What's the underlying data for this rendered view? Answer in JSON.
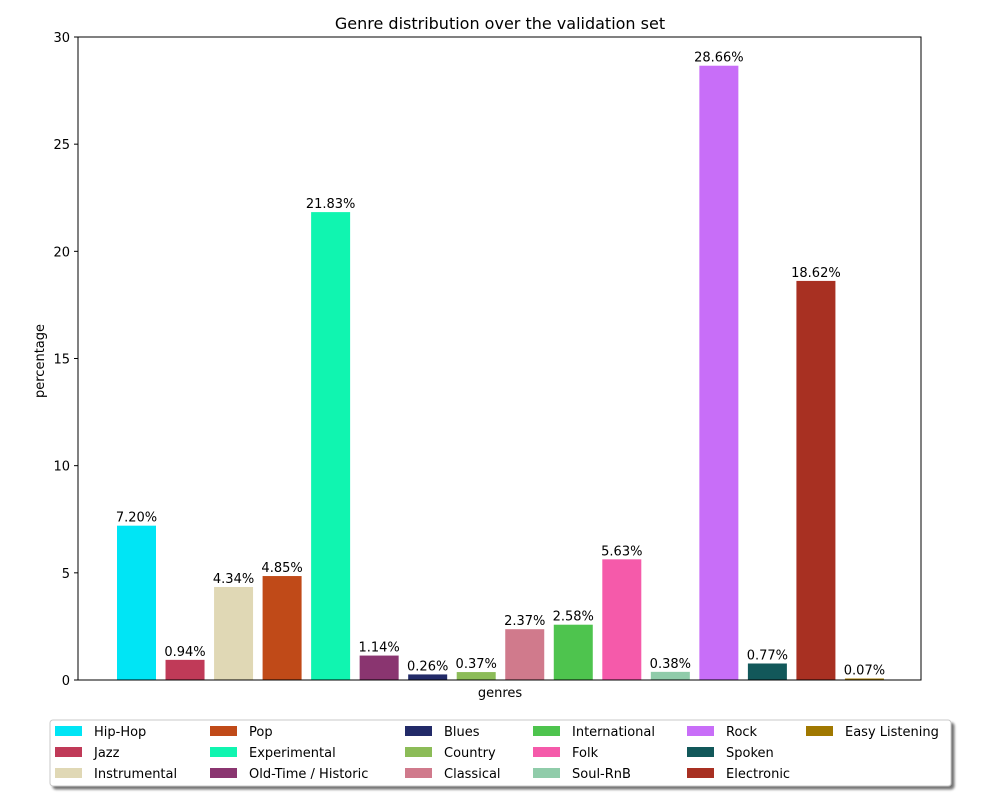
{
  "chart_data": {
    "type": "bar",
    "title": "Genre distribution over the validation set",
    "xlabel": "genres",
    "ylabel": "percentage",
    "ylim": [
      0,
      30
    ],
    "yticks": [
      "0",
      "5",
      "10",
      "15",
      "20",
      "25",
      "30"
    ],
    "legend_position": "bottom",
    "bars": [
      {
        "name": "Hip-Hop",
        "value": 7.2,
        "label": "7.20%",
        "color": "#00e5f5"
      },
      {
        "name": "Jazz",
        "value": 0.94,
        "label": "0.94%",
        "color": "#c03a58"
      },
      {
        "name": "Instrumental",
        "value": 4.34,
        "label": "4.34%",
        "color": "#e0d8b5"
      },
      {
        "name": "Pop",
        "value": 4.85,
        "label": "4.85%",
        "color": "#c04a18"
      },
      {
        "name": "Experimental",
        "value": 21.83,
        "label": "21.83%",
        "color": "#10f5b0"
      },
      {
        "name": "Old-Time / Historic",
        "value": 1.14,
        "label": "1.14%",
        "color": "#8a3570"
      },
      {
        "name": "Blues",
        "value": 0.26,
        "label": "0.26%",
        "color": "#222a68"
      },
      {
        "name": "Country",
        "value": 0.37,
        "label": "0.37%",
        "color": "#8cbc58"
      },
      {
        "name": "Classical",
        "value": 2.37,
        "label": "2.37%",
        "color": "#d07a8c"
      },
      {
        "name": "International",
        "value": 2.58,
        "label": "2.58%",
        "color": "#4ec44e"
      },
      {
        "name": "Folk",
        "value": 5.63,
        "label": "5.63%",
        "color": "#f55aaa"
      },
      {
        "name": "Soul-RnB",
        "value": 0.38,
        "label": "0.38%",
        "color": "#90ccaa"
      },
      {
        "name": "Rock",
        "value": 28.66,
        "label": "28.66%",
        "color": "#c86ef8"
      },
      {
        "name": "Spoken",
        "value": 0.77,
        "label": "0.77%",
        "color": "#12585a"
      },
      {
        "name": "Electronic",
        "value": 18.62,
        "label": "18.62%",
        "color": "#a83022"
      },
      {
        "name": "Easy Listening",
        "value": 0.07,
        "label": "0.07%",
        "color": "#a07800"
      }
    ]
  }
}
